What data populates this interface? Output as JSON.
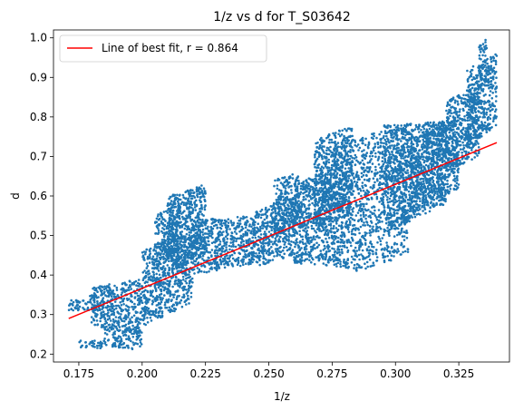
{
  "chart_data": {
    "type": "scatter",
    "title": "1/z vs d for T_S03642",
    "xlabel": "1/z",
    "ylabel": "d",
    "xlim": [
      0.165,
      0.345
    ],
    "ylim": [
      0.18,
      1.02
    ],
    "xticks": [
      0.175,
      0.2,
      0.225,
      0.25,
      0.275,
      0.3,
      0.325
    ],
    "xtick_labels": [
      "0.175",
      "0.200",
      "0.225",
      "0.250",
      "0.275",
      "0.300",
      "0.325"
    ],
    "yticks": [
      0.2,
      0.3,
      0.4,
      0.5,
      0.6,
      0.7,
      0.8,
      0.9,
      1.0
    ],
    "ytick_labels": [
      "0.2",
      "0.3",
      "0.4",
      "0.5",
      "0.6",
      "0.7",
      "0.8",
      "0.9",
      "1.0"
    ],
    "grid": false,
    "legend_position": "top-left",
    "scatter_color": "#1f77b4",
    "fit_color": "#ff0000",
    "series": [
      {
        "kind": "scatter",
        "regions": [
          {
            "x0": 0.171,
            "x1": 0.182,
            "ylow": [
              0.31,
              0.31
            ],
            "yhigh": [
              0.34,
              0.35
            ]
          },
          {
            "x0": 0.175,
            "x1": 0.185,
            "ylow": [
              0.215,
              0.215
            ],
            "yhigh": [
              0.235,
              0.235
            ]
          },
          {
            "x0": 0.18,
            "x1": 0.2,
            "ylow": [
              0.27,
              0.26
            ],
            "yhigh": [
              0.37,
              0.39
            ]
          },
          {
            "x0": 0.185,
            "x1": 0.2,
            "ylow": [
              0.22,
              0.21
            ],
            "yhigh": [
              0.27,
              0.26
            ]
          },
          {
            "x0": 0.2,
            "x1": 0.22,
            "ylow": [
              0.27,
              0.33
            ],
            "yhigh": [
              0.46,
              0.52
            ]
          },
          {
            "x0": 0.21,
            "x1": 0.225,
            "ylow": [
              0.4,
              0.45
            ],
            "yhigh": [
              0.6,
              0.63
            ]
          },
          {
            "x0": 0.205,
            "x1": 0.215,
            "ylow": [
              0.42,
              0.45
            ],
            "yhigh": [
              0.55,
              0.58
            ]
          },
          {
            "x0": 0.22,
            "x1": 0.245,
            "ylow": [
              0.4,
              0.43
            ],
            "yhigh": [
              0.54,
              0.55
            ]
          },
          {
            "x0": 0.245,
            "x1": 0.26,
            "ylow": [
              0.42,
              0.45
            ],
            "yhigh": [
              0.56,
              0.6
            ]
          },
          {
            "x0": 0.252,
            "x1": 0.262,
            "ylow": [
              0.5,
              0.52
            ],
            "yhigh": [
              0.64,
              0.66
            ]
          },
          {
            "x0": 0.26,
            "x1": 0.28,
            "ylow": [
              0.43,
              0.42
            ],
            "yhigh": [
              0.63,
              0.68
            ]
          },
          {
            "x0": 0.268,
            "x1": 0.283,
            "ylow": [
              0.52,
              0.55
            ],
            "yhigh": [
              0.74,
              0.78
            ]
          },
          {
            "x0": 0.28,
            "x1": 0.305,
            "ylow": [
              0.4,
              0.45
            ],
            "yhigh": [
              0.74,
              0.78
            ]
          },
          {
            "x0": 0.295,
            "x1": 0.32,
            "ylow": [
              0.5,
              0.58
            ],
            "yhigh": [
              0.78,
              0.79
            ]
          },
          {
            "x0": 0.305,
            "x1": 0.325,
            "ylow": [
              0.55,
              0.62
            ],
            "yhigh": [
              0.74,
              0.8
            ]
          },
          {
            "x0": 0.32,
            "x1": 0.333,
            "ylow": [
              0.66,
              0.7
            ],
            "yhigh": [
              0.84,
              0.88
            ]
          },
          {
            "x0": 0.328,
            "x1": 0.34,
            "ylow": [
              0.72,
              0.78
            ],
            "yhigh": [
              0.92,
              0.96
            ]
          },
          {
            "x0": 0.333,
            "x1": 0.336,
            "ylow": [
              0.9,
              0.92
            ],
            "yhigh": [
              0.98,
              1.0
            ]
          }
        ]
      },
      {
        "kind": "line",
        "name": "Line of best fit, r = 0.864",
        "x": [
          0.171,
          0.34
        ],
        "y": [
          0.29,
          0.735
        ]
      }
    ]
  }
}
